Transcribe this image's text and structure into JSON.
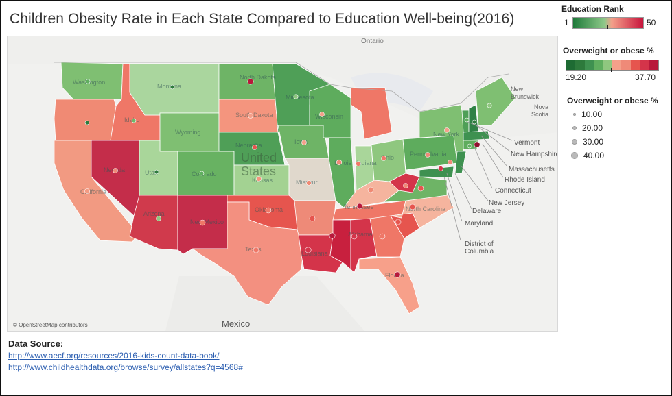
{
  "title": "Children Obesity Rate in Each State Compared to Education Well-being(2016)",
  "map": {
    "attribution": "© OpenStreetMap contributors",
    "labels": {
      "ontario": "Ontario",
      "united": "United",
      "states": "States",
      "mexico": "Mexico",
      "new_brunswick_1": "New",
      "new_brunswick_2": "Brunswick",
      "nova_scotia_1": "Nova",
      "nova_scotia_2": "Scotia"
    },
    "callouts": [
      "Vermont",
      "New Hampshire",
      "Massachusetts",
      "Rhode Island",
      "Connecticut",
      "New Jersey",
      "Delaware",
      "Maryland",
      "District of",
      "Columbia"
    ],
    "state_labels": [
      "Washington",
      "Montana",
      "North Dakota",
      "Minnesota",
      "South Dakota",
      "Wisconsin",
      "Wyoming",
      "Idaho",
      "Nebraska",
      "Iowa",
      "Illinois",
      "Indiana",
      "Ohio",
      "Pennsylvania",
      "New York",
      "Nevada",
      "Utah",
      "Colorado",
      "Kansas",
      "Missouri",
      "California",
      "Arizona",
      "New Mexico",
      "Oklahoma",
      "Tennessee",
      "North Carolina",
      "Texas",
      "Louisiana",
      "Alabama",
      "Florida"
    ]
  },
  "legend": {
    "education_rank": {
      "title": "Education Rank",
      "min": "1",
      "max": "50",
      "low_color": "#1e7a3a",
      "high_color": "#c8143c"
    },
    "obesity_color": {
      "title": "Overweight or obese %",
      "min": "19.20",
      "max": "37.70"
    },
    "obesity_size": {
      "title": "Overweight or obese %",
      "items": [
        "10.00",
        "20.00",
        "30.00",
        "40.00"
      ]
    }
  },
  "source": {
    "title": "Data Source:",
    "link1": "http://www.aecf.org/resources/2016-kids-count-data-book/",
    "link2": "http://www.childhealthdata.org/browse/survey/allstates?q=4568#"
  }
}
